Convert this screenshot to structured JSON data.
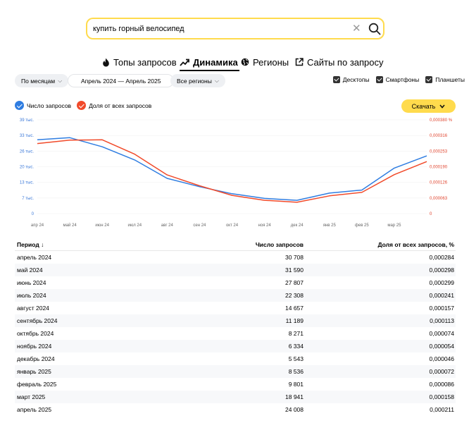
{
  "search": {
    "query": "купить горный велосипед"
  },
  "tabs": [
    {
      "label": "Топы запросов",
      "icon": "fire-icon"
    },
    {
      "label": "Динамика",
      "icon": "trend-icon"
    },
    {
      "label": "Регионы",
      "icon": "globe-icon"
    },
    {
      "label": "Сайты по запросу",
      "icon": "external-link-icon"
    }
  ],
  "filters": {
    "period_mode": "По месяцам",
    "date_range": "Апрель 2024 — Апрель 2025",
    "regions": "Все регионы"
  },
  "devices": [
    {
      "label": "Десктопы",
      "checked": true
    },
    {
      "label": "Смартфоны",
      "checked": true
    },
    {
      "label": "Планшеты",
      "checked": true
    }
  ],
  "legend": {
    "count": "Число запросов",
    "share": "Доля от всех запросов"
  },
  "download_label": "Скачать",
  "colors": {
    "count": "#2f7de1",
    "share": "#f14a2a",
    "accent": "#ffdb4d"
  },
  "chart_data": {
    "type": "line",
    "x": [
      "апр 24",
      "май 24",
      "июн 24",
      "июл 24",
      "авг 24",
      "сен 24",
      "окт 24",
      "ноя 24",
      "дек 24",
      "янв 25",
      "фев 25",
      "мар 25",
      "апр 25"
    ],
    "left_ticks": [
      "0",
      "7 тыс.",
      "13 тыс.",
      "20 тыс.",
      "26 тыс.",
      "33 тыс.",
      "39 тыс."
    ],
    "right_ticks": [
      "0",
      "0,000063",
      "0,000126",
      "0,000190",
      "0,000253",
      "0,000316",
      "0,000380 %"
    ],
    "ylim_left": [
      0,
      39000
    ],
    "ylim_right": [
      0,
      0.00038
    ],
    "x_tick_labels": [
      "апр 24",
      "май 24",
      "июн 24",
      "июл 24",
      "авг 24",
      "сен 24",
      "окт 24",
      "ноя 24",
      "дек 24",
      "янв 25",
      "фев 25",
      "мар 25"
    ],
    "series": [
      {
        "name": "Число запросов",
        "axis": "left",
        "values": [
          30708,
          31590,
          27807,
          22308,
          14657,
          11189,
          8271,
          6334,
          5543,
          8536,
          9801,
          18941,
          24008
        ]
      },
      {
        "name": "Доля от всех запросов",
        "axis": "right",
        "values": [
          0.000284,
          0.000298,
          0.000299,
          0.000241,
          0.000157,
          0.000113,
          7.4e-05,
          5.4e-05,
          4.6e-05,
          7.2e-05,
          8.6e-05,
          0.000158,
          0.000211
        ]
      }
    ]
  },
  "table": {
    "headers": [
      "Период ↓",
      "Число запросов",
      "Доля от всех запросов, %"
    ],
    "rows": [
      [
        "апрель 2024",
        "30 708",
        "0,000284"
      ],
      [
        "май 2024",
        "31 590",
        "0,000298"
      ],
      [
        "июнь 2024",
        "27 807",
        "0,000299"
      ],
      [
        "июль 2024",
        "22 308",
        "0,000241"
      ],
      [
        "август 2024",
        "14 657",
        "0,000157"
      ],
      [
        "сентябрь 2024",
        "11 189",
        "0,000113"
      ],
      [
        "октябрь 2024",
        "8 271",
        "0,000074"
      ],
      [
        "ноябрь 2024",
        "6 334",
        "0,000054"
      ],
      [
        "декабрь 2024",
        "5 543",
        "0,000046"
      ],
      [
        "январь 2025",
        "8 536",
        "0,000072"
      ],
      [
        "февраль 2025",
        "9 801",
        "0,000086"
      ],
      [
        "март 2025",
        "18 941",
        "0,000158"
      ],
      [
        "апрель 2025",
        "24 008",
        "0,000211"
      ]
    ]
  }
}
